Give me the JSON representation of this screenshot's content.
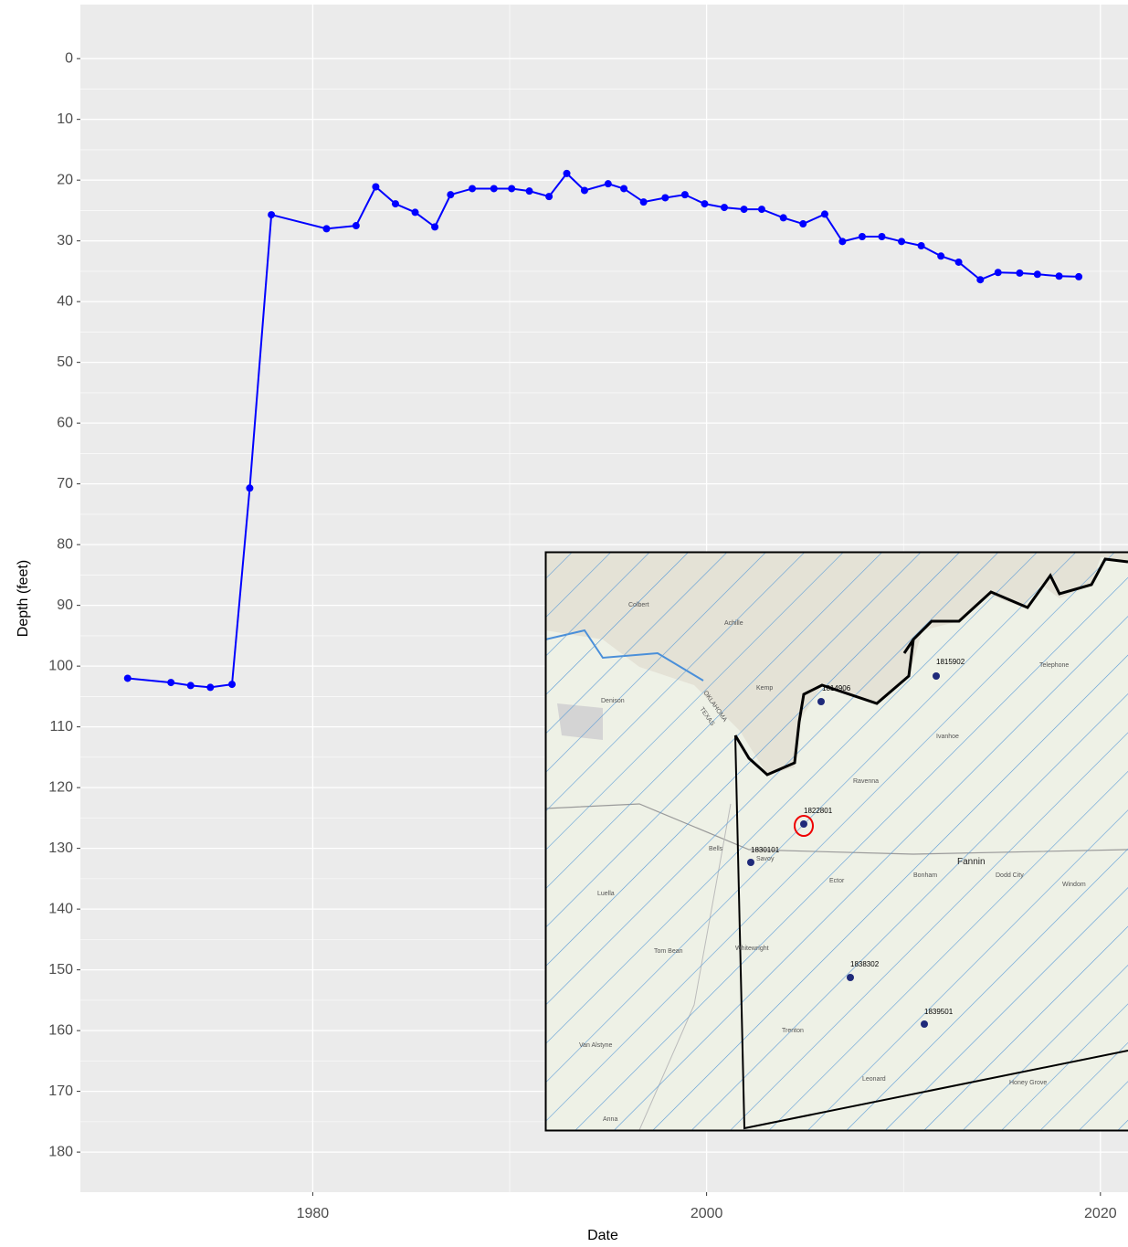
{
  "chart_data": {
    "type": "line",
    "x_label": "Date",
    "y_label": "Depth (feet)",
    "x": [
      1970.6,
      1972.8,
      1973.8,
      1974.8,
      1975.9,
      1976.8,
      1977.9,
      1980.7,
      1982.2,
      1983.2,
      1984.2,
      1985.2,
      1986.2,
      1987.0,
      1988.1,
      1989.2,
      1990.1,
      1991.0,
      1992.0,
      1992.9,
      1993.8,
      1995.0,
      1995.8,
      1996.8,
      1997.9,
      1998.9,
      1999.9,
      2000.9,
      2001.9,
      2002.8,
      2003.9,
      2004.9,
      2006.0,
      2006.9,
      2007.9,
      2008.9,
      2009.9,
      2010.9,
      2011.9,
      2012.8,
      2013.9,
      2014.8,
      2015.9,
      2016.8,
      2017.9,
      2018.9
    ],
    "series": [
      {
        "color": "#0000ff",
        "values": [
          102.0,
          102.7,
          103.2,
          103.5,
          103.0,
          70.7,
          25.7,
          28.0,
          27.5,
          21.1,
          23.9,
          25.3,
          27.7,
          22.4,
          21.4,
          21.4,
          21.4,
          21.8,
          22.7,
          18.9,
          21.7,
          20.6,
          21.4,
          23.6,
          22.9,
          22.4,
          23.9,
          24.5,
          24.8,
          24.8,
          26.2,
          27.2,
          25.6,
          30.1,
          29.3,
          29.3,
          30.1,
          30.8,
          32.5,
          33.5,
          36.4,
          35.2,
          35.3,
          35.5,
          35.8,
          35.9
        ]
      }
    ],
    "xlim": [
      1968.2,
      2021.4
    ],
    "xticks": [
      1980,
      2000,
      2020
    ],
    "ylim": [
      -8.9,
      186.6
    ],
    "y_reversed": true,
    "yticks": [
      0,
      10,
      20,
      30,
      40,
      50,
      60,
      70,
      80,
      90,
      100,
      110,
      120,
      130,
      140,
      150,
      160,
      170,
      180
    ],
    "grid": true
  },
  "inset_map": {
    "wells": [
      "1814906",
      "1815902",
      "1822801",
      "1830101",
      "1838302",
      "1839501"
    ],
    "places": [
      "Colbert",
      "Achille",
      "Kemp",
      "Denison",
      "Telephone",
      "Ivanhoe",
      "Ravenna",
      "Fannin",
      "Bonham",
      "Ector",
      "Dodd City",
      "Windom",
      "Bells",
      "Savoy",
      "Luella",
      "Tom Bean",
      "Whitewright",
      "Trenton",
      "Leonard",
      "Van Alstyne",
      "Anna",
      "Honey Grove",
      "OKLAHOMA",
      "TEXAS"
    ]
  }
}
